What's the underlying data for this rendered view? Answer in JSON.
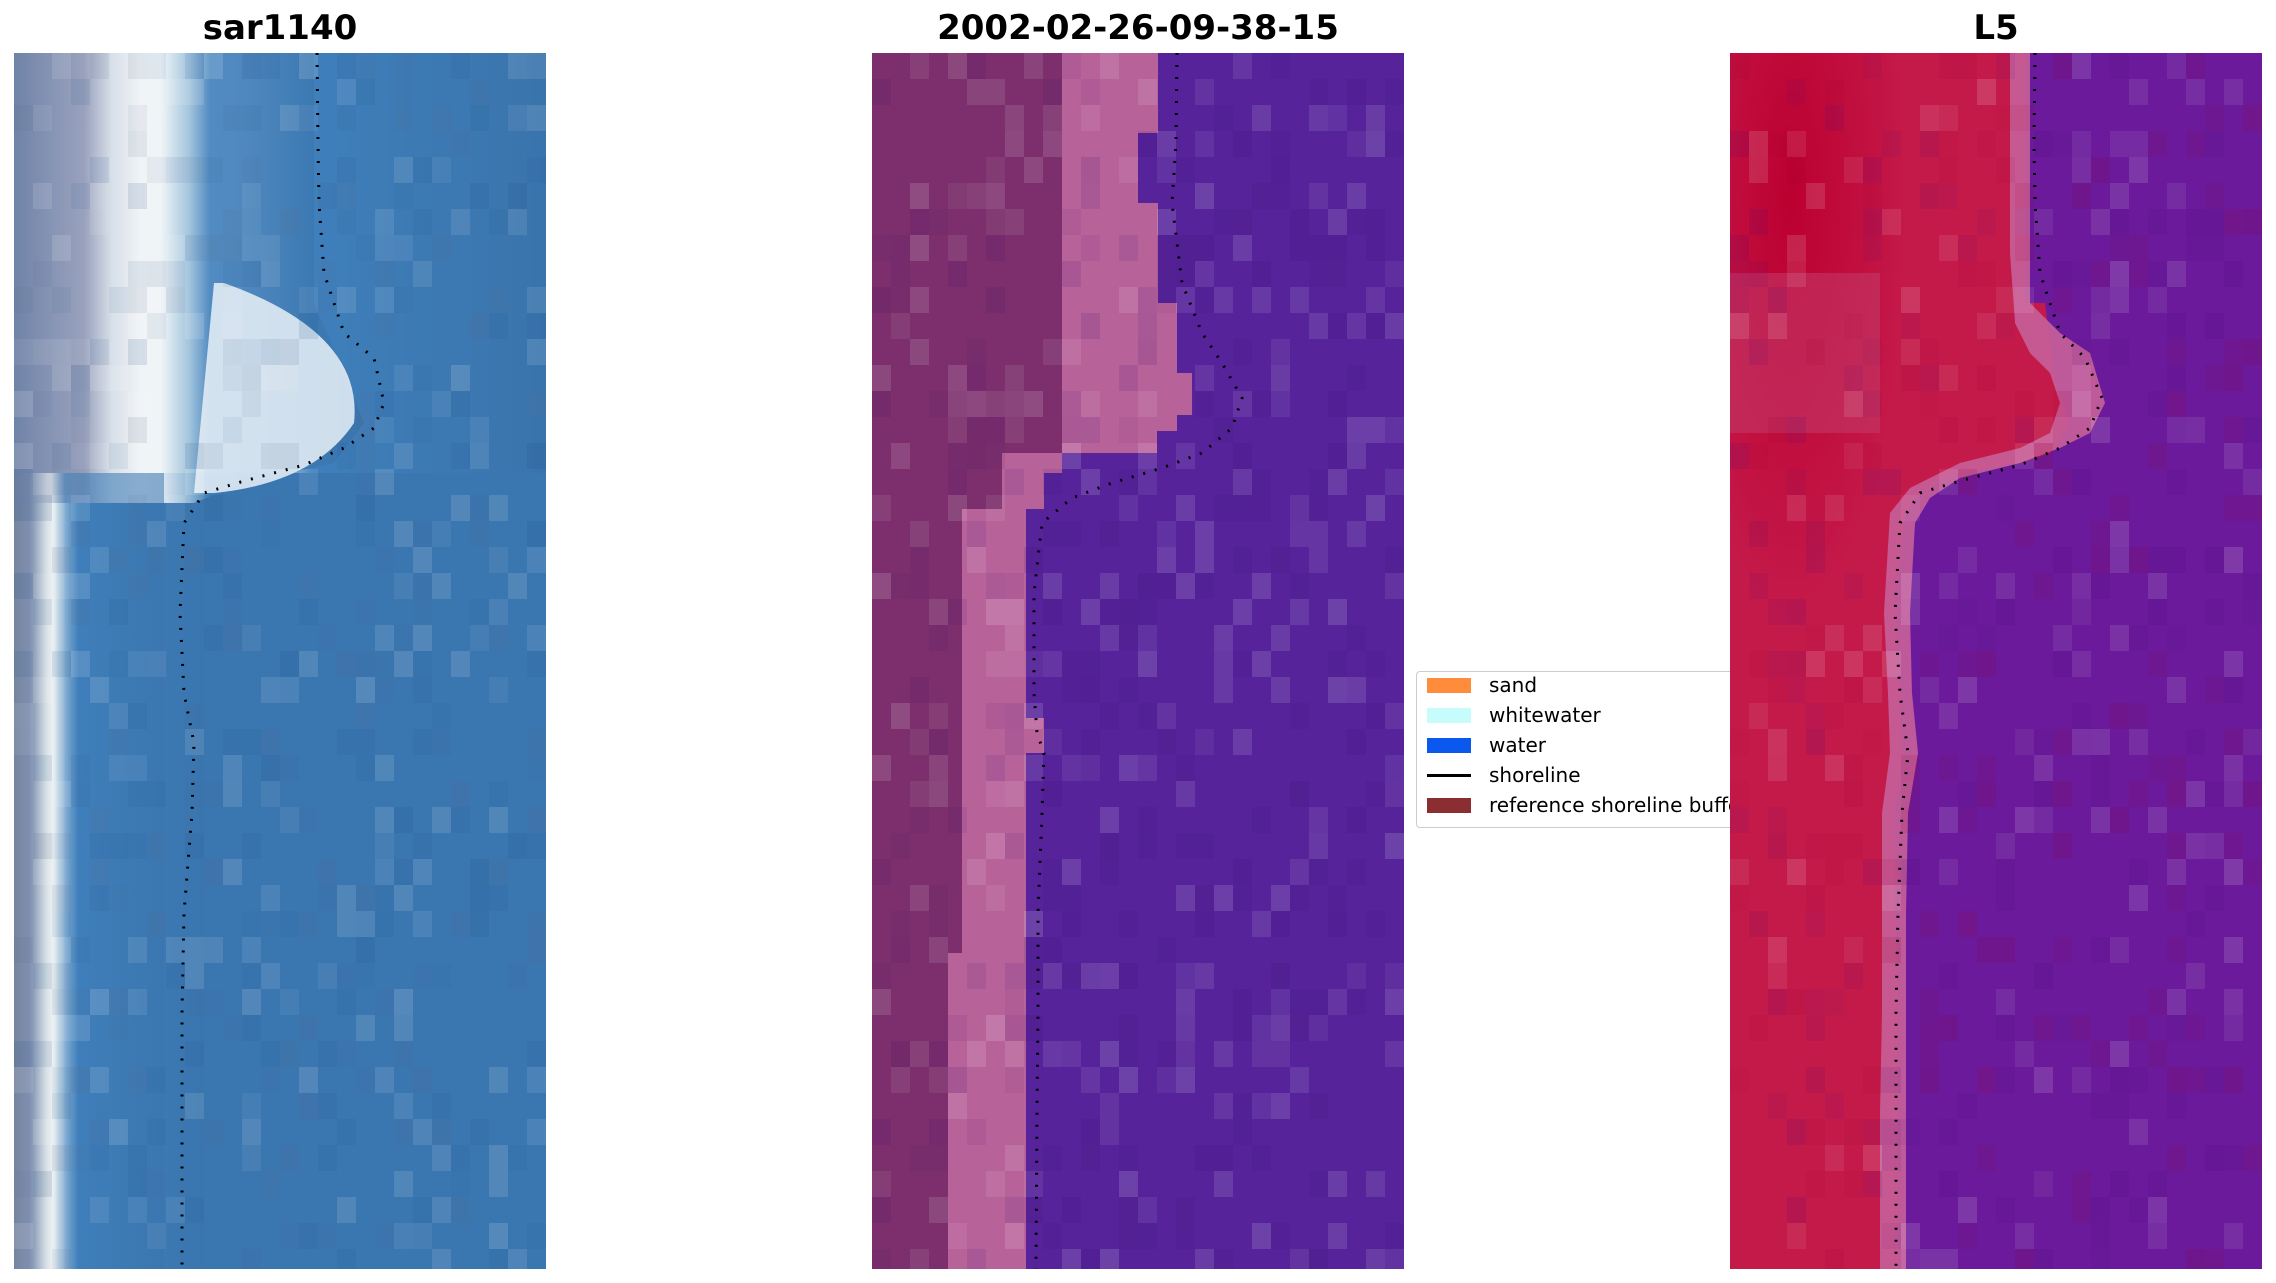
{
  "panels": [
    {
      "title": "sar1140"
    },
    {
      "title": "2002-02-26-09-38-15"
    },
    {
      "title": "L5"
    }
  ],
  "legend": {
    "items": [
      {
        "label": "sand",
        "color": "#ff8c3a",
        "kind": "patch"
      },
      {
        "label": "whitewater",
        "color": "#c6fcfc",
        "kind": "patch"
      },
      {
        "label": "water",
        "color": "#0a58ee",
        "kind": "patch"
      },
      {
        "label": "shoreline",
        "color": "#000000",
        "kind": "line"
      },
      {
        "label": "reference shoreline buffer",
        "color": "#8b2e32",
        "kind": "patch"
      }
    ]
  },
  "colors": {
    "rgb_water": "#3a76b0",
    "rgb_land": "#7d8fb0",
    "rgb_white": "#f2f6f8",
    "class_water": "#56239a",
    "class_land": "#7c2f6c",
    "class_beach": "#b8629a",
    "index_land": "#c4184a",
    "index_water": "#6a1a9a",
    "index_beach": "#c8609a",
    "shoreline": "#000000"
  }
}
